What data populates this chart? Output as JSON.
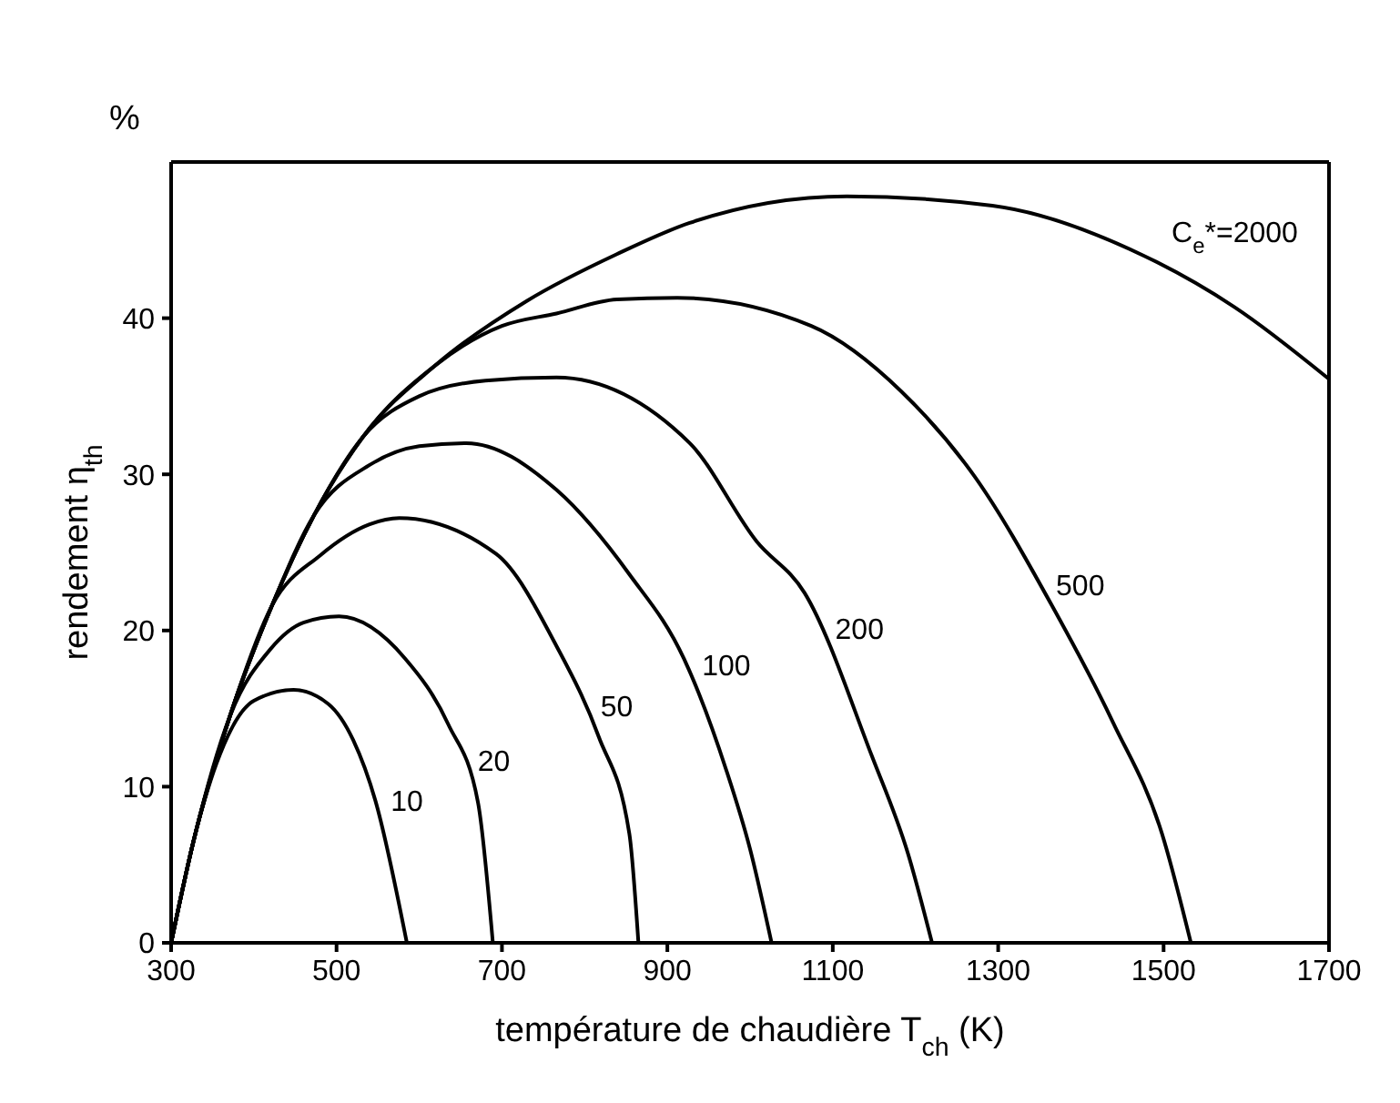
{
  "chart_data": {
    "type": "line",
    "xlabel": "température de chaudière T$_{ch}$ (K)",
    "ylabel": "rendement η$_{th}$",
    "xlim": [
      300,
      1700
    ],
    "ylim": [
      0,
      50
    ],
    "xticks": [
      300,
      500,
      700,
      900,
      1100,
      1300,
      1500,
      1700
    ],
    "yticks": [
      0,
      10,
      20,
      30,
      40
    ],
    "grid": false,
    "marker": "none",
    "line_style": "solid",
    "series": [
      {
        "name": "10",
        "color": "#000000",
        "x": [
          300,
          327,
          355,
          400,
          448,
          490,
          520,
          547,
          585
        ],
        "values": [
          0,
          6.5,
          11.5,
          15.5,
          16.2,
          15.3,
          13,
          9.1,
          0
        ]
      },
      {
        "name": "20",
        "color": "#000000",
        "x": [
          300,
          327,
          371,
          420,
          460,
          503,
          583,
          635,
          671,
          689
        ],
        "values": [
          0,
          6.5,
          14.5,
          18.8,
          20.5,
          20.9,
          18.2,
          14,
          9,
          0
        ]
      },
      {
        "name": "50",
        "color": "#000000",
        "x": [
          300,
          327,
          371,
          422,
          480,
          540,
          576,
          693,
          766,
          817,
          854,
          865
        ],
        "values": [
          0,
          6.5,
          14.5,
          21.6,
          24.8,
          26.8,
          27.2,
          24.9,
          19,
          13.2,
          7,
          0
        ]
      },
      {
        "name": "100",
        "color": "#000000",
        "x": [
          300,
          327,
          371,
          422,
          473,
          540,
          600,
          657,
          766,
          854,
          920,
          971,
          1000,
          1026
        ],
        "values": [
          0,
          6.5,
          14.5,
          21.6,
          27.4,
          30.6,
          31.8,
          32,
          29,
          23.6,
          18.2,
          11.1,
          6,
          0
        ]
      },
      {
        "name": "200",
        "color": "#000000",
        "x": [
          300,
          327,
          371,
          422,
          473,
          532,
          600,
          680,
          766,
          927,
          1008,
          1066,
          1147,
          1191,
          1220
        ],
        "values": [
          0,
          6.5,
          14.5,
          21.6,
          27.4,
          32.4,
          35,
          36,
          36.2,
          32,
          25.7,
          22.4,
          12,
          5.7,
          0
        ]
      },
      {
        "name": "500",
        "color": "#000000",
        "x": [
          300,
          327,
          371,
          422,
          473,
          532,
          620,
          700,
          766,
          839,
          912,
          1074,
          1183,
          1271,
          1366,
          1439,
          1498,
          1533
        ],
        "values": [
          0,
          6.5,
          14.5,
          21.6,
          27.4,
          32.4,
          37,
          39.5,
          40.3,
          41.2,
          41.3,
          39.5,
          35.3,
          29.9,
          21.5,
          14.1,
          7,
          0
        ]
      },
      {
        "name": "C$_{e}$*=2000",
        "color": "#000000",
        "x": [
          300,
          327,
          371,
          422,
          473,
          532,
          620,
          730,
          839,
          927,
          1117,
          1293,
          1476,
          1586,
          1700
        ],
        "values": [
          0,
          6.5,
          14.5,
          21.6,
          27.4,
          32.4,
          37,
          41.1,
          44.1,
          46.1,
          47.8,
          47.2,
          44,
          40.7,
          36.1
        ]
      }
    ],
    "annotations": [
      "%"
    ]
  }
}
